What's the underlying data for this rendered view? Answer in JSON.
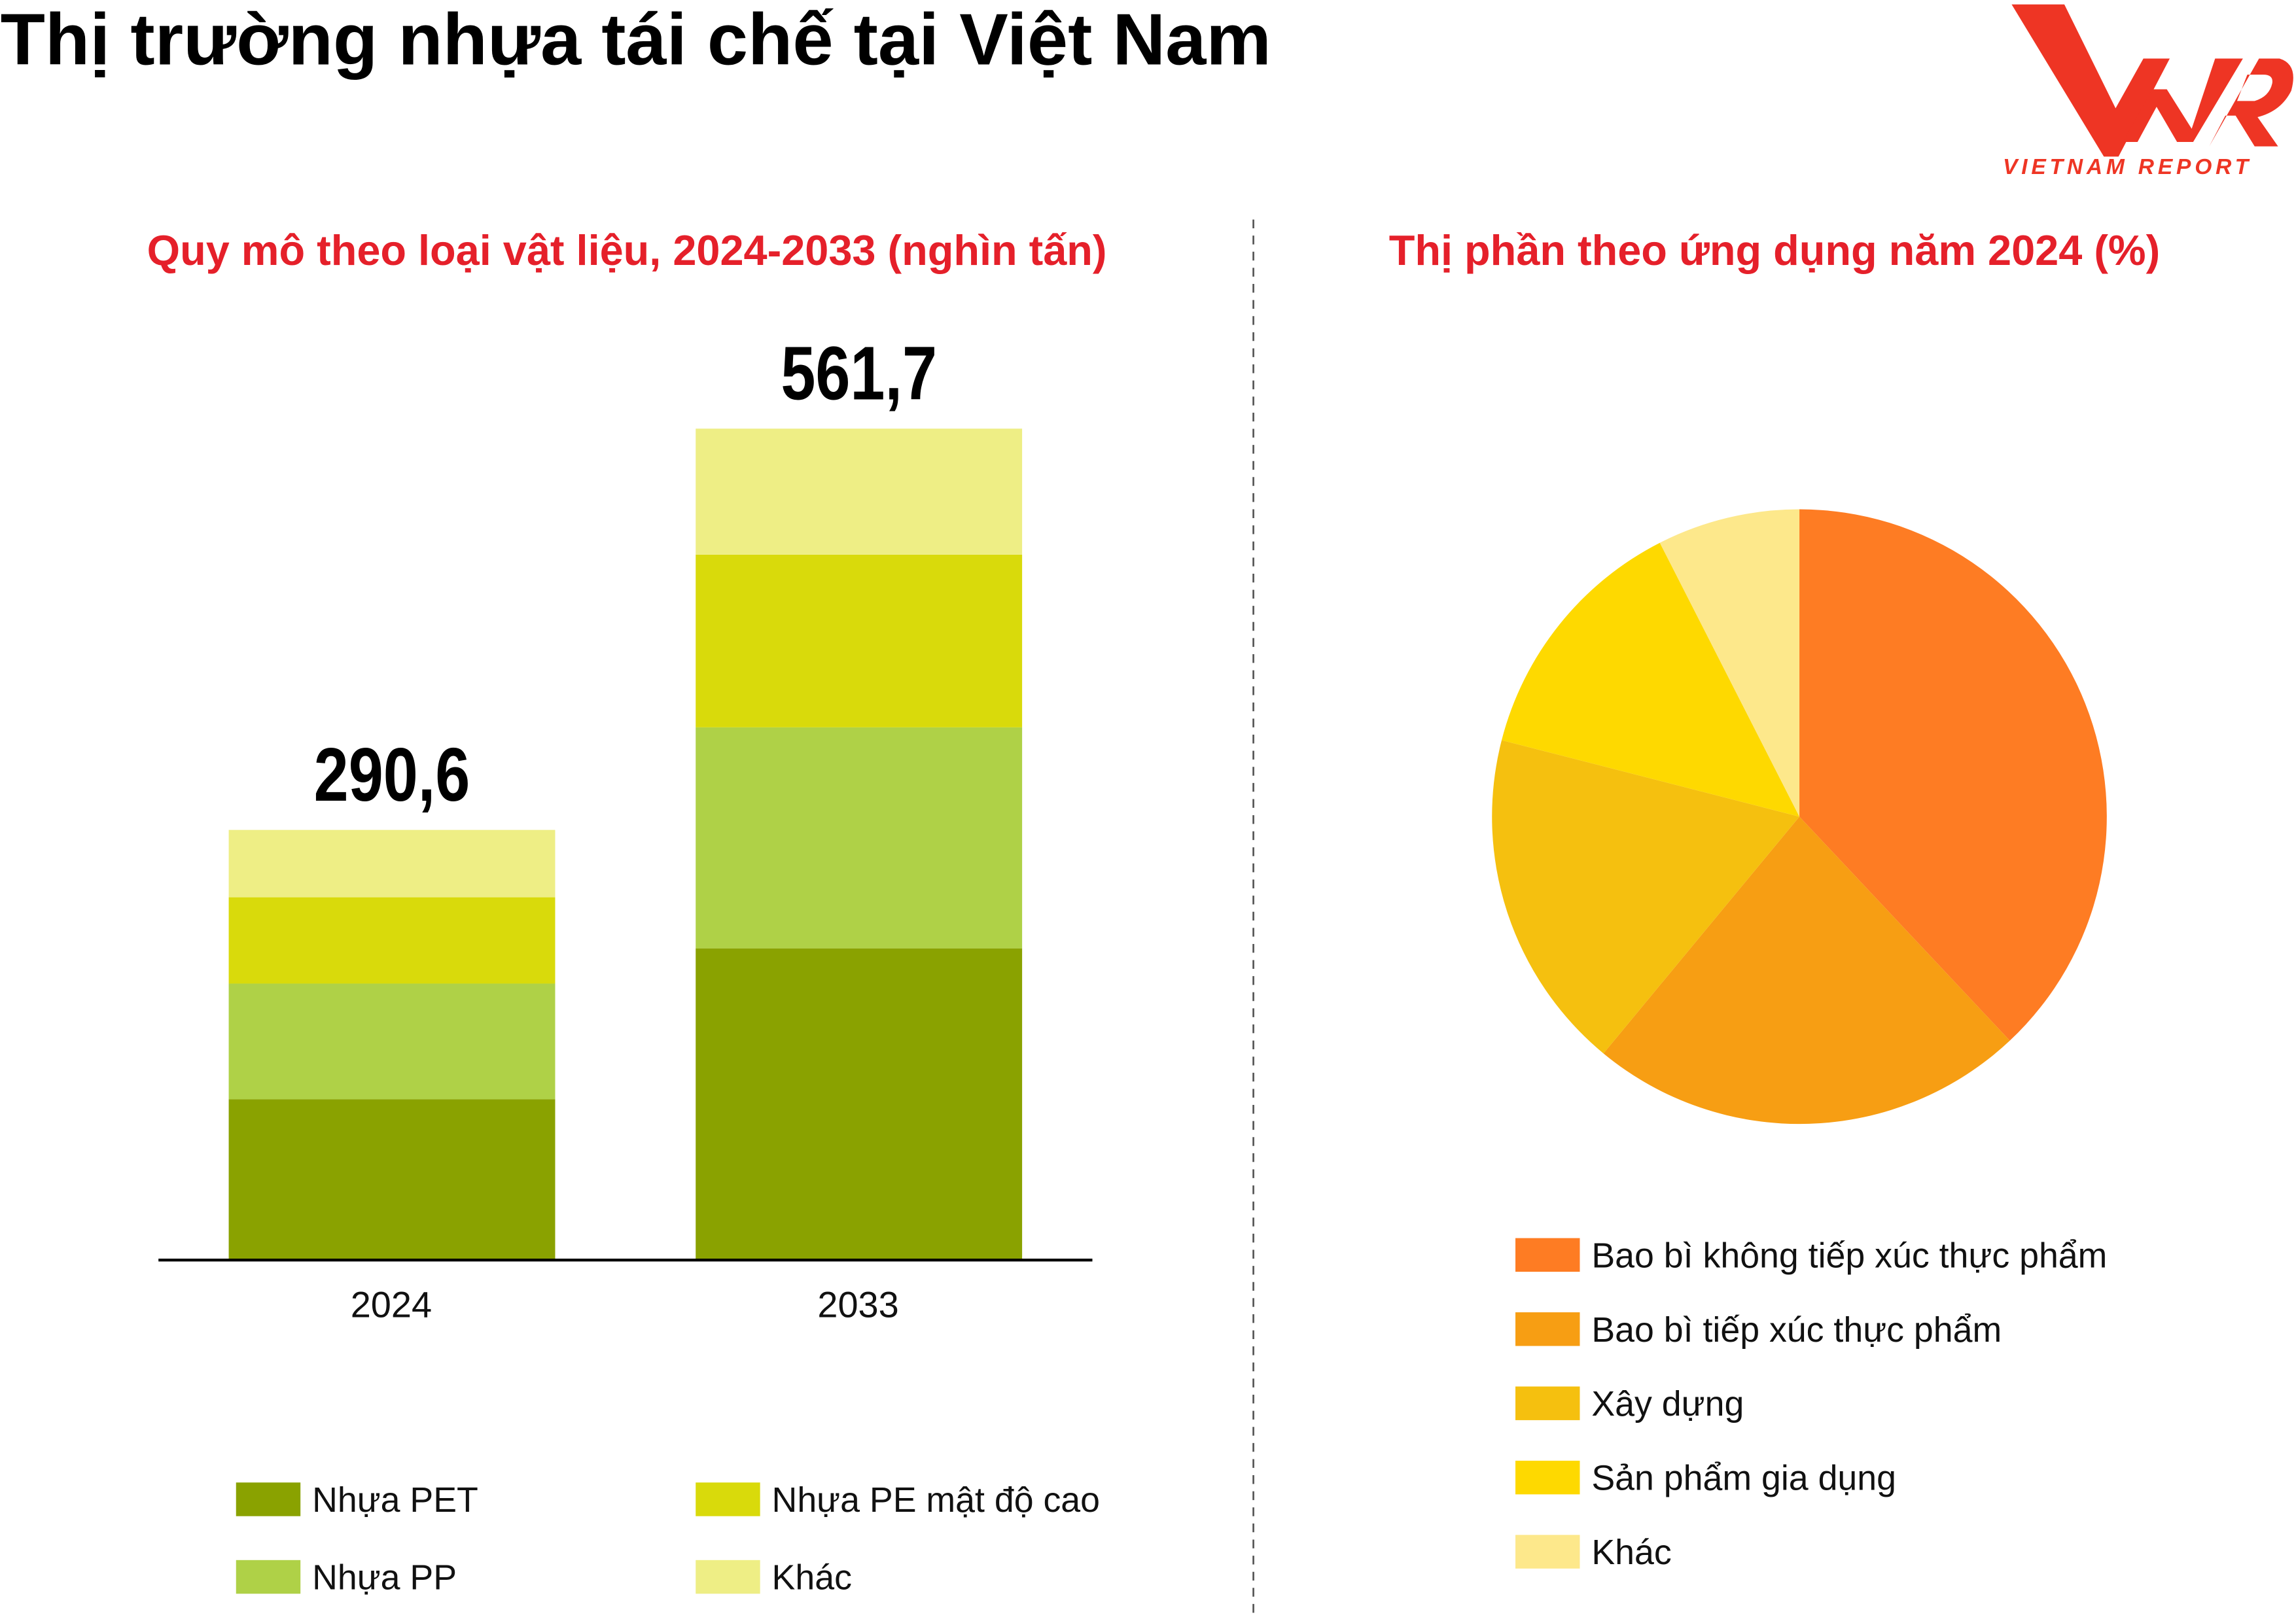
{
  "title": "Thị trường nhựa tái chế tại Việt Nam",
  "logo": {
    "text": "VNR",
    "tagline": "VIETNAM REPORT",
    "color": "#ee3524"
  },
  "chart_data": [
    {
      "type": "bar",
      "stacked": true,
      "title": "Quy mô theo loại vật liệu, 2024-2033 (nghìn tấn)",
      "categories": [
        "2024",
        "2033"
      ],
      "totals": [
        "290,6",
        "561,7"
      ],
      "series": [
        {
          "name": "Nhựa PET",
          "color": "#8aa200",
          "values": [
            108.7,
            210.6
          ]
        },
        {
          "name": "Nhựa PP",
          "color": "#afd147",
          "values": [
            78.1,
            149.3
          ]
        },
        {
          "name": "Nhựa PE mật độ cao",
          "color": "#d9da0b",
          "values": [
            58.3,
            116.7
          ]
        },
        {
          "name": "Khác",
          "color": "#eeee85",
          "values": [
            45.5,
            85.1
          ]
        }
      ],
      "legend": "bottom",
      "grid": false
    },
    {
      "type": "pie",
      "title": "Thị phần theo ứng dụng năm 2024 (%)",
      "slices": [
        {
          "name": "Bao bì không tiếp xúc thực phẩm",
          "value": 38,
          "color": "#fe7c23"
        },
        {
          "name": "Bao bì tiếp xúc thực phẩm",
          "value": 23,
          "color": "#f79e13"
        },
        {
          "name": "Xây dựng",
          "value": 18,
          "color": "#f5c00f"
        },
        {
          "name": "Sản phẩm gia dụng",
          "value": 13.5,
          "color": "#fed900"
        },
        {
          "name": "Khác",
          "value": 7.5,
          "color": "#fde88b"
        }
      ],
      "legend": "bottom"
    }
  ]
}
